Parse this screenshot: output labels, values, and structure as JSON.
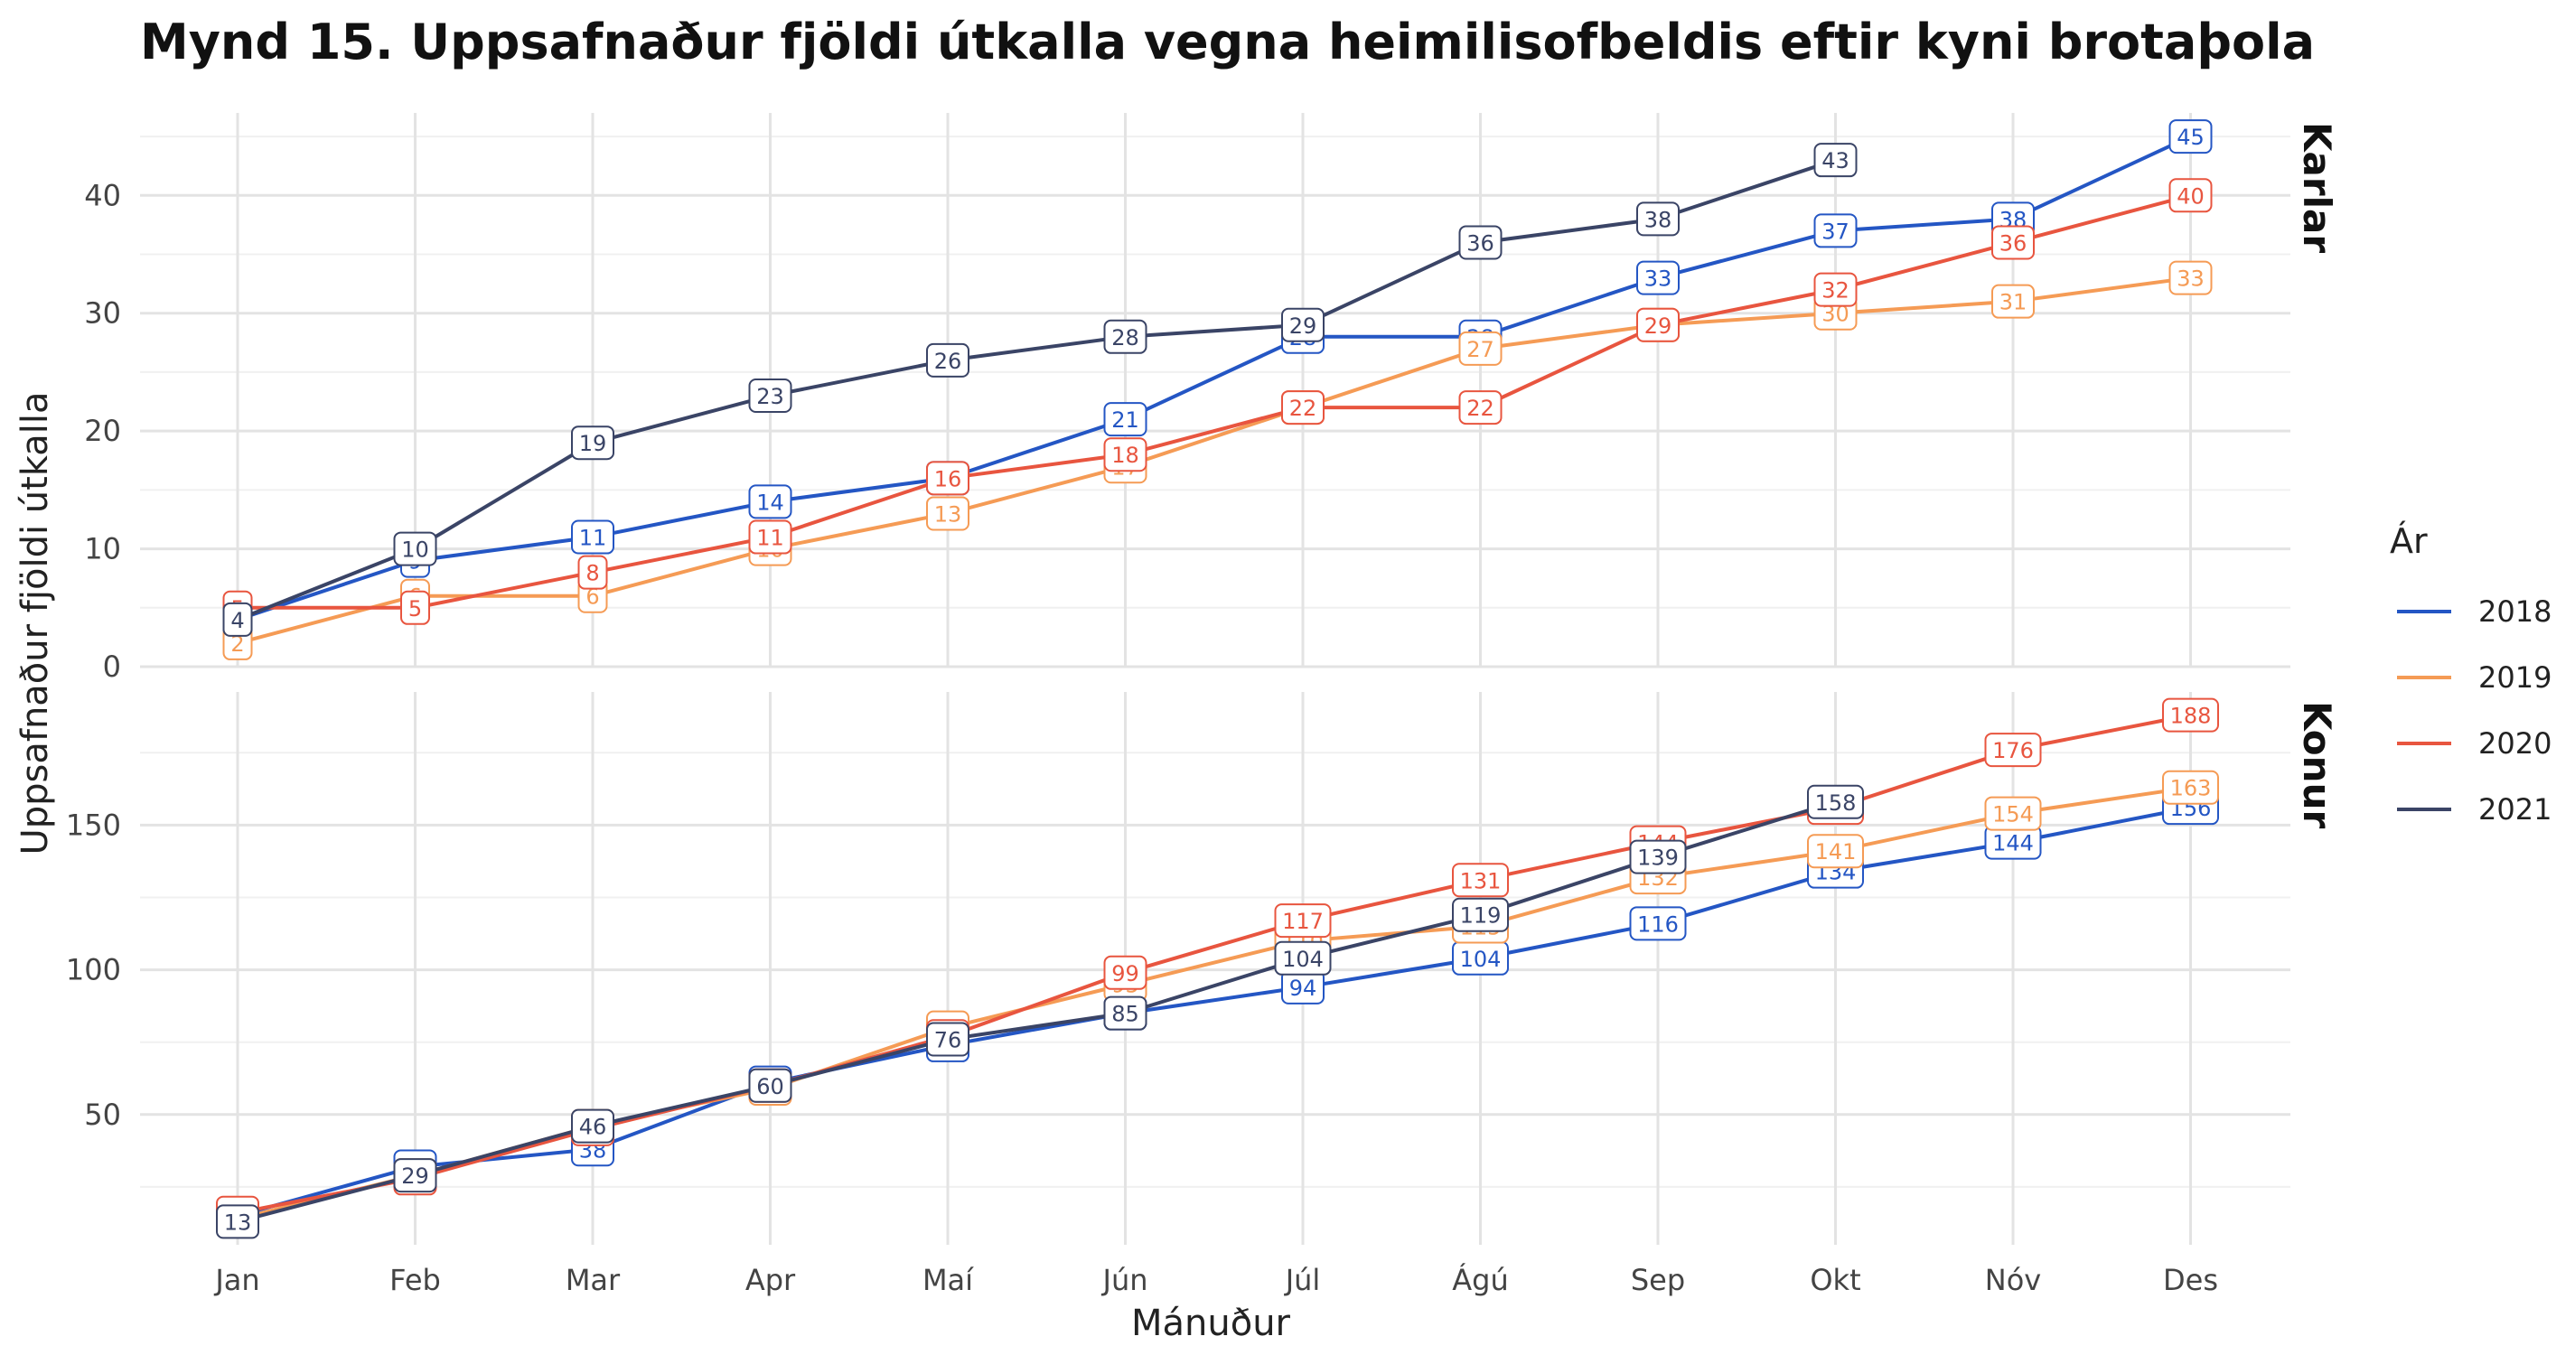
{
  "chart_data": {
    "type": "line",
    "title": "Mynd 15. Uppsafnaður fjöldi útkalla vegna heimilisofbeldis eftir kyni brotaþola",
    "xlabel": "Mánuður",
    "ylabel": "Uppsafnaður fjöldi útkalla",
    "categories": [
      "Jan",
      "Feb",
      "Mar",
      "Apr",
      "Maí",
      "Jún",
      "Júl",
      "Ágú",
      "Sep",
      "Okt",
      "Nóv",
      "Des"
    ],
    "legend": {
      "title": "Ár",
      "placement": "right"
    },
    "grid": true,
    "colors": {
      "2018": "#2456c4",
      "2019": "#f59b55",
      "2020": "#e8553f",
      "2021": "#3a4466"
    },
    "panels": [
      {
        "strip": "Karlar",
        "ylim": [
          0,
          47
        ],
        "yticks": [
          0,
          10,
          20,
          30,
          40
        ],
        "series": [
          {
            "name": "2018",
            "values": [
              4,
              9,
              11,
              14,
              16,
              21,
              28,
              28,
              33,
              37,
              38,
              45
            ]
          },
          {
            "name": "2019",
            "values": [
              2,
              6,
              6,
              10,
              13,
              17,
              22,
              27,
              29,
              30,
              31,
              33
            ]
          },
          {
            "name": "2020",
            "values": [
              5,
              5,
              8,
              11,
              16,
              18,
              22,
              22,
              29,
              32,
              36,
              40
            ]
          },
          {
            "name": "2021",
            "values": [
              4,
              10,
              19,
              23,
              26,
              28,
              29,
              36,
              38,
              43
            ]
          }
        ]
      },
      {
        "strip": "Konur",
        "ylim": [
          5,
          196
        ],
        "yticks": [
          50,
          100,
          150
        ],
        "series": [
          {
            "name": "2018",
            "values": [
              15,
              32,
              38,
              61,
              74,
              85,
              94,
              104,
              116,
              134,
              144,
              156
            ]
          },
          {
            "name": "2019",
            "values": [
              14,
              29,
              46,
              59,
              80,
              95,
              110,
              115,
              132,
              141,
              154,
              163
            ]
          },
          {
            "name": "2020",
            "values": [
              16,
              28,
              45,
              60,
              77,
              99,
              117,
              131,
              144,
              156,
              176,
              188
            ]
          },
          {
            "name": "2021",
            "values": [
              13,
              29,
              46,
              60,
              76,
              85,
              104,
              119,
              139,
              158
            ]
          }
        ]
      }
    ]
  }
}
